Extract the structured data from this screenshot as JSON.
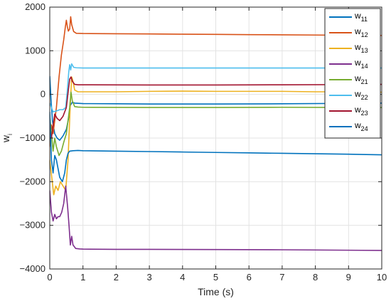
{
  "chart_data": {
    "type": "line",
    "xlabel": "Time (s)",
    "ylabel": {
      "main": "w",
      "sub": "i"
    },
    "xlim": [
      0,
      10
    ],
    "ylim": [
      -4000,
      2000
    ],
    "xticks": [
      0,
      1,
      2,
      3,
      4,
      5,
      6,
      7,
      8,
      9,
      10
    ],
    "yticks": [
      -4000,
      -3000,
      -2000,
      -1000,
      0,
      1000,
      2000
    ],
    "grid": true,
    "legend_position": "top-right",
    "series": [
      {
        "name": {
          "main": "w",
          "sub": "11"
        },
        "color": "#0072BD",
        "points": [
          [
            0,
            420
          ],
          [
            0.04,
            -150
          ],
          [
            0.08,
            -600
          ],
          [
            0.15,
            -900
          ],
          [
            0.22,
            -1000
          ],
          [
            0.3,
            -1050
          ],
          [
            0.4,
            -950
          ],
          [
            0.5,
            -800
          ],
          [
            0.58,
            -500
          ],
          [
            0.62,
            -250
          ],
          [
            0.68,
            -180
          ],
          [
            0.75,
            -200
          ],
          [
            1,
            -210
          ],
          [
            2,
            -215
          ],
          [
            3,
            -220
          ],
          [
            5,
            -220
          ],
          [
            7,
            -215
          ],
          [
            9,
            -205
          ],
          [
            10,
            -200
          ]
        ]
      },
      {
        "name": {
          "main": "w",
          "sub": "12"
        },
        "color": "#D95319",
        "points": [
          [
            0,
            -1200
          ],
          [
            0.05,
            -700
          ],
          [
            0.1,
            -900
          ],
          [
            0.2,
            -300
          ],
          [
            0.28,
            400
          ],
          [
            0.35,
            900
          ],
          [
            0.42,
            1250
          ],
          [
            0.47,
            1550
          ],
          [
            0.5,
            1700
          ],
          [
            0.53,
            1550
          ],
          [
            0.56,
            1450
          ],
          [
            0.6,
            1500
          ],
          [
            0.63,
            1780
          ],
          [
            0.66,
            1600
          ],
          [
            0.72,
            1440
          ],
          [
            0.8,
            1400
          ],
          [
            1,
            1395
          ],
          [
            2,
            1390
          ],
          [
            3,
            1385
          ],
          [
            4,
            1380
          ],
          [
            5,
            1375
          ],
          [
            6,
            1370
          ],
          [
            7,
            1365
          ],
          [
            8,
            1360
          ],
          [
            9,
            1355
          ],
          [
            10,
            1350
          ]
        ]
      },
      {
        "name": {
          "main": "w",
          "sub": "13"
        },
        "color": "#EDB120",
        "points": [
          [
            0,
            -1500
          ],
          [
            0.06,
            -1900
          ],
          [
            0.12,
            -2300
          ],
          [
            0.18,
            -2100
          ],
          [
            0.25,
            -2200
          ],
          [
            0.32,
            -2000
          ],
          [
            0.4,
            -2100
          ],
          [
            0.48,
            -2200
          ],
          [
            0.55,
            -1500
          ],
          [
            0.62,
            -200
          ],
          [
            0.66,
            400
          ],
          [
            0.7,
            300
          ],
          [
            0.75,
            100
          ],
          [
            0.85,
            60
          ],
          [
            1,
            60
          ],
          [
            2,
            60
          ],
          [
            3,
            70
          ],
          [
            4,
            75
          ],
          [
            5,
            70
          ],
          [
            6,
            70
          ],
          [
            7,
            70
          ],
          [
            8,
            60
          ],
          [
            9,
            60
          ],
          [
            10,
            50
          ]
        ]
      },
      {
        "name": {
          "main": "w",
          "sub": "14"
        },
        "color": "#7E2F8E",
        "points": [
          [
            0,
            -2200
          ],
          [
            0.05,
            -2700
          ],
          [
            0.1,
            -2900
          ],
          [
            0.15,
            -2750
          ],
          [
            0.2,
            -2850
          ],
          [
            0.25,
            -2800
          ],
          [
            0.3,
            -2800
          ],
          [
            0.36,
            -2700
          ],
          [
            0.42,
            -2500
          ],
          [
            0.48,
            -2100
          ],
          [
            0.54,
            -2600
          ],
          [
            0.58,
            -3000
          ],
          [
            0.62,
            -3450
          ],
          [
            0.66,
            -3250
          ],
          [
            0.7,
            -3450
          ],
          [
            0.78,
            -3530
          ],
          [
            0.9,
            -3540
          ],
          [
            1,
            -3545
          ],
          [
            2,
            -3550
          ],
          [
            3,
            -3550
          ],
          [
            5,
            -3555
          ],
          [
            7,
            -3560
          ],
          [
            9,
            -3570
          ],
          [
            10,
            -3575
          ]
        ]
      },
      {
        "name": {
          "main": "w",
          "sub": "21"
        },
        "color": "#77AC30",
        "points": [
          [
            0,
            -500
          ],
          [
            0.05,
            -900
          ],
          [
            0.1,
            -1300
          ],
          [
            0.15,
            -1000
          ],
          [
            0.2,
            -1200
          ],
          [
            0.28,
            -1400
          ],
          [
            0.35,
            -1300
          ],
          [
            0.42,
            -1100
          ],
          [
            0.5,
            -900
          ],
          [
            0.55,
            -600
          ],
          [
            0.6,
            -300
          ],
          [
            0.64,
            50
          ],
          [
            0.68,
            -150
          ],
          [
            0.75,
            -280
          ],
          [
            0.85,
            -290
          ],
          [
            1,
            -295
          ],
          [
            3,
            -300
          ],
          [
            5,
            -300
          ],
          [
            7,
            -295
          ],
          [
            9,
            -300
          ],
          [
            10,
            -300
          ]
        ]
      },
      {
        "name": {
          "main": "w",
          "sub": "22"
        },
        "color": "#4DBEEE",
        "points": [
          [
            0,
            -200
          ],
          [
            0.05,
            -300
          ],
          [
            0.1,
            -400
          ],
          [
            0.2,
            -380
          ],
          [
            0.3,
            -350
          ],
          [
            0.4,
            -350
          ],
          [
            0.48,
            -300
          ],
          [
            0.53,
            100
          ],
          [
            0.57,
            500
          ],
          [
            0.6,
            680
          ],
          [
            0.63,
            560
          ],
          [
            0.66,
            700
          ],
          [
            0.72,
            620
          ],
          [
            0.8,
            610
          ],
          [
            1,
            605
          ],
          [
            3,
            605
          ],
          [
            5,
            605
          ],
          [
            7,
            605
          ],
          [
            9,
            605
          ],
          [
            10,
            605
          ]
        ]
      },
      {
        "name": {
          "main": "w",
          "sub": "23"
        },
        "color": "#A2142F",
        "points": [
          [
            0,
            -800
          ],
          [
            0.05,
            -1000
          ],
          [
            0.1,
            -700
          ],
          [
            0.15,
            -450
          ],
          [
            0.22,
            -550
          ],
          [
            0.3,
            -600
          ],
          [
            0.4,
            -500
          ],
          [
            0.5,
            -300
          ],
          [
            0.56,
            100
          ],
          [
            0.6,
            350
          ],
          [
            0.64,
            400
          ],
          [
            0.68,
            300
          ],
          [
            0.75,
            230
          ],
          [
            0.85,
            220
          ],
          [
            1,
            220
          ],
          [
            3,
            215
          ],
          [
            5,
            215
          ],
          [
            7,
            220
          ],
          [
            9,
            225
          ],
          [
            10,
            230
          ]
        ]
      },
      {
        "name": {
          "main": "w",
          "sub": "24"
        },
        "color": "#0072BD",
        "points": [
          [
            0,
            -400
          ],
          [
            0.05,
            -1500
          ],
          [
            0.1,
            -1800
          ],
          [
            0.15,
            -1400
          ],
          [
            0.2,
            -1500
          ],
          [
            0.25,
            -1700
          ],
          [
            0.3,
            -1900
          ],
          [
            0.38,
            -2000
          ],
          [
            0.45,
            -1800
          ],
          [
            0.5,
            -1500
          ],
          [
            0.55,
            -1350
          ],
          [
            0.6,
            -1300
          ],
          [
            0.7,
            -1290
          ],
          [
            0.85,
            -1285
          ],
          [
            1,
            -1290
          ],
          [
            2,
            -1300
          ],
          [
            3,
            -1310
          ],
          [
            4,
            -1320
          ],
          [
            5,
            -1330
          ],
          [
            6,
            -1340
          ],
          [
            7,
            -1350
          ],
          [
            8,
            -1360
          ],
          [
            9,
            -1370
          ],
          [
            10,
            -1385
          ]
        ]
      }
    ]
  }
}
